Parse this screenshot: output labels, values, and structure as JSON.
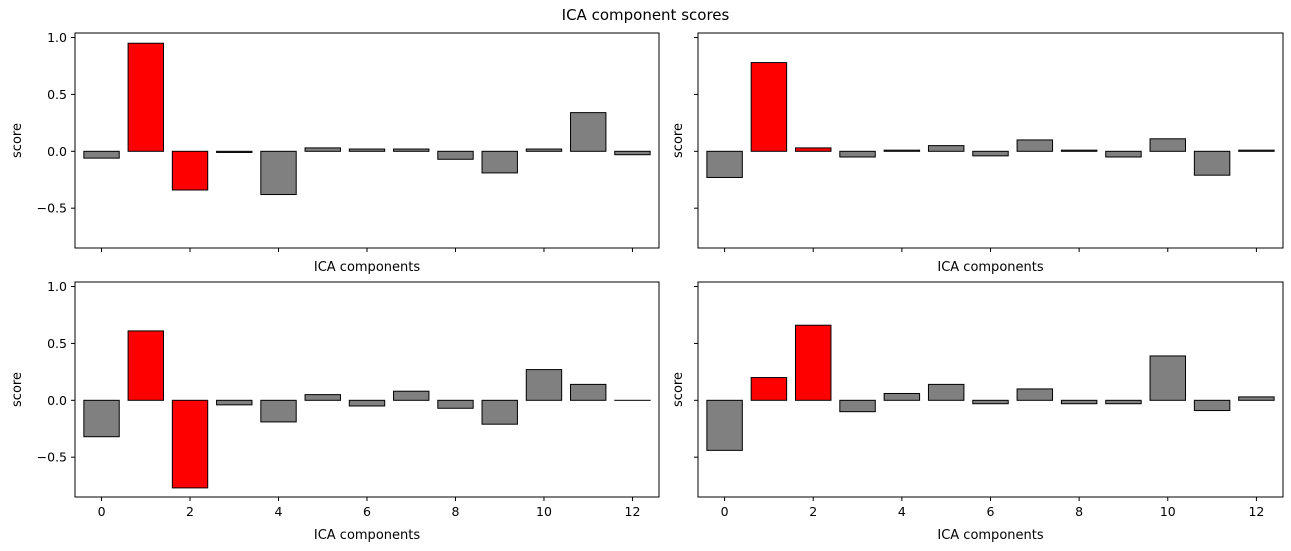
{
  "chart_data": {
    "type": "bar",
    "title": "ICA component scores",
    "layout": {
      "rows": 2,
      "cols": 2,
      "sharex": true,
      "sharey": true
    },
    "ylim": [
      -0.85,
      1.04
    ],
    "xlim": [
      -0.6,
      12.6
    ],
    "yticks": [
      -0.5,
      0.0,
      0.5,
      1.0
    ],
    "ytick_labels": [
      "−0.5",
      "0.0",
      "0.5",
      "1.0"
    ],
    "xticks": [
      0,
      2,
      4,
      6,
      8,
      10,
      12
    ],
    "xtick_labels": [
      "0",
      "2",
      "4",
      "6",
      "8",
      "10",
      "12"
    ],
    "xlabel": "ICA components",
    "ylabel": "score",
    "colors": {
      "highlight": "#ff0000",
      "normal": "#808080",
      "edge": "#000000"
    },
    "panels": [
      {
        "values": [
          -0.06,
          0.95,
          -0.34,
          -0.01,
          -0.38,
          0.03,
          0.02,
          0.02,
          -0.07,
          -0.19,
          0.02,
          0.34,
          -0.03
        ],
        "highlighted": [
          1,
          2
        ]
      },
      {
        "values": [
          -0.23,
          0.78,
          0.03,
          -0.05,
          0.01,
          0.05,
          -0.04,
          0.1,
          0.01,
          -0.05,
          0.11,
          -0.21,
          0.01
        ],
        "highlighted": [
          1,
          2
        ]
      },
      {
        "values": [
          -0.32,
          0.61,
          -0.77,
          -0.04,
          -0.19,
          0.05,
          -0.05,
          0.08,
          -0.07,
          -0.21,
          0.27,
          0.14,
          0.0
        ],
        "highlighted": [
          1,
          2
        ]
      },
      {
        "values": [
          -0.44,
          0.2,
          0.66,
          -0.1,
          0.06,
          0.14,
          -0.03,
          0.1,
          -0.03,
          -0.03,
          0.39,
          -0.09,
          0.03
        ],
        "highlighted": [
          1,
          2
        ]
      }
    ]
  }
}
